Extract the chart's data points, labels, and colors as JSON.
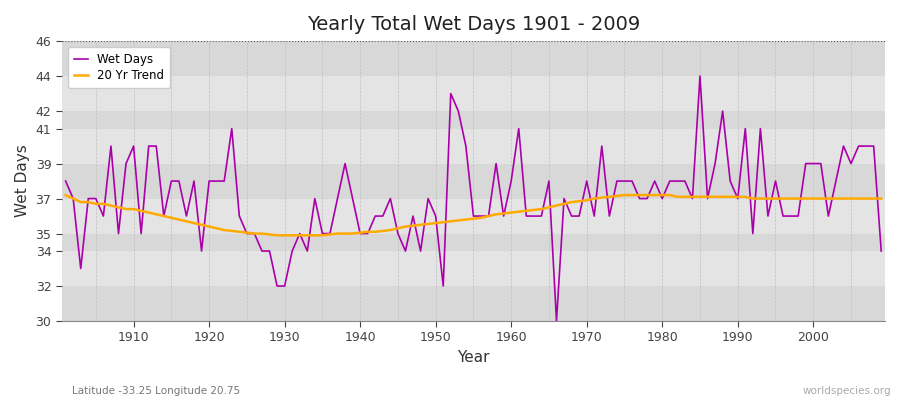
{
  "title": "Yearly Total Wet Days 1901 - 2009",
  "xlabel": "Year",
  "ylabel": "Wet Days",
  "subtitle_lat_lon": "Latitude -33.25 Longitude 20.75",
  "watermark": "worldspecies.org",
  "fig_bg_color": "#ffffff",
  "plot_bg_color": "#dcdcdc",
  "plot_bg_color2": "#e8e8e8",
  "wet_days_color": "#aa00aa",
  "trend_color": "#ffaa00",
  "ylim": [
    30,
    46
  ],
  "yticks": [
    30,
    32,
    34,
    35,
    37,
    39,
    41,
    42,
    44,
    46
  ],
  "years": [
    1901,
    1902,
    1903,
    1904,
    1905,
    1906,
    1907,
    1908,
    1909,
    1910,
    1911,
    1912,
    1913,
    1914,
    1915,
    1916,
    1917,
    1918,
    1919,
    1920,
    1921,
    1922,
    1923,
    1924,
    1925,
    1926,
    1927,
    1928,
    1929,
    1930,
    1931,
    1932,
    1933,
    1934,
    1935,
    1936,
    1937,
    1938,
    1939,
    1940,
    1941,
    1942,
    1943,
    1944,
    1945,
    1946,
    1947,
    1948,
    1949,
    1950,
    1951,
    1952,
    1953,
    1954,
    1955,
    1956,
    1957,
    1958,
    1959,
    1960,
    1961,
    1962,
    1963,
    1964,
    1965,
    1966,
    1967,
    1968,
    1969,
    1970,
    1971,
    1972,
    1973,
    1974,
    1975,
    1976,
    1977,
    1978,
    1979,
    1980,
    1981,
    1982,
    1983,
    1984,
    1985,
    1986,
    1987,
    1988,
    1989,
    1990,
    1991,
    1992,
    1993,
    1994,
    1995,
    1996,
    1997,
    1998,
    1999,
    2000,
    2001,
    2002,
    2003,
    2004,
    2005,
    2006,
    2007,
    2008,
    2009
  ],
  "wet_days": [
    38,
    37,
    33,
    37,
    37,
    36,
    40,
    35,
    39,
    40,
    35,
    40,
    40,
    36,
    38,
    38,
    36,
    38,
    34,
    38,
    38,
    38,
    41,
    36,
    35,
    35,
    34,
    34,
    32,
    32,
    34,
    35,
    34,
    37,
    35,
    35,
    37,
    39,
    37,
    35,
    35,
    36,
    36,
    37,
    35,
    34,
    36,
    34,
    37,
    36,
    32,
    43,
    42,
    40,
    36,
    36,
    36,
    39,
    36,
    38,
    41,
    36,
    36,
    36,
    38,
    30,
    37,
    36,
    36,
    38,
    36,
    40,
    36,
    38,
    38,
    38,
    37,
    37,
    38,
    37,
    38,
    38,
    38,
    37,
    44,
    37,
    39,
    42,
    38,
    37,
    41,
    35,
    41,
    36,
    38,
    36,
    36,
    36,
    39,
    39,
    39,
    36,
    38,
    40,
    39,
    40,
    40,
    40,
    34
  ],
  "trend_values": [
    37.2,
    37.0,
    36.8,
    36.8,
    36.7,
    36.7,
    36.6,
    36.5,
    36.4,
    36.4,
    36.3,
    36.2,
    36.1,
    36.0,
    35.9,
    35.8,
    35.7,
    35.6,
    35.5,
    35.4,
    35.3,
    35.2,
    35.15,
    35.1,
    35.05,
    35.0,
    35.0,
    34.95,
    34.9,
    34.9,
    34.9,
    34.9,
    34.9,
    34.9,
    34.9,
    34.95,
    35.0,
    35.0,
    35.0,
    35.05,
    35.1,
    35.1,
    35.15,
    35.2,
    35.3,
    35.4,
    35.45,
    35.5,
    35.55,
    35.6,
    35.65,
    35.7,
    35.75,
    35.8,
    35.85,
    35.9,
    36.0,
    36.1,
    36.15,
    36.2,
    36.25,
    36.3,
    36.35,
    36.4,
    36.5,
    36.6,
    36.7,
    36.8,
    36.85,
    36.9,
    37.0,
    37.05,
    37.1,
    37.15,
    37.2,
    37.2,
    37.2,
    37.2,
    37.2,
    37.2,
    37.2,
    37.1,
    37.1,
    37.1,
    37.1,
    37.1,
    37.1,
    37.1,
    37.1,
    37.1,
    37.1,
    37.0,
    37.0,
    37.0,
    37.0,
    37.0,
    37.0,
    37.0,
    37.0,
    37.0,
    37.0,
    37.0,
    37.0,
    37.0,
    37.0,
    37.0,
    37.0,
    37.0,
    37.0
  ]
}
